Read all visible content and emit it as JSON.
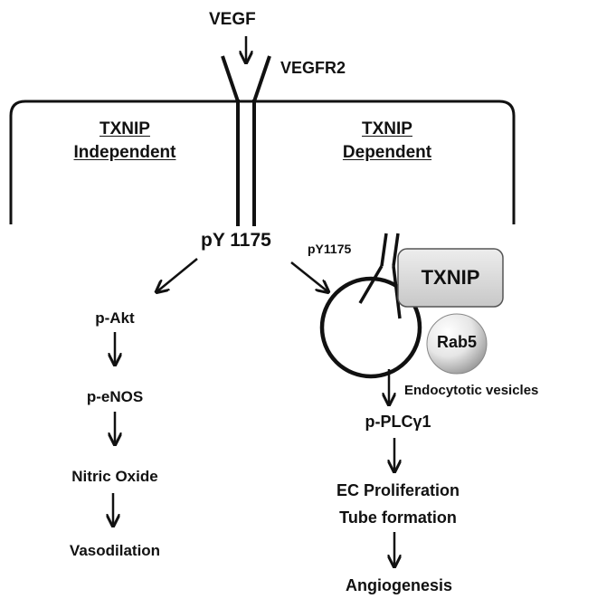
{
  "ligand": "VEGF",
  "receptor": "VEGFR2",
  "branches": {
    "independent": {
      "line1": "TXNIP",
      "line2": "Independent"
    },
    "dependent": {
      "line1": "TXNIP",
      "line2": "Dependent"
    }
  },
  "phospho_site": "pY 1175",
  "vesicle_site": "pY1175",
  "txnip_box": "TXNIP",
  "rab5": "Rab5",
  "vesicle_label": "Endocytotic vesicles",
  "left_pathway": [
    "p-Akt",
    "p-eNOS",
    "Nitric Oxide",
    "Vasodilation"
  ],
  "right_pathway": {
    "step1": "p-PLCγ1",
    "step2_line1": "EC Proliferation",
    "step2_line2": "Tube formation",
    "step3": "Angiogenesis"
  },
  "colors": {
    "ink": "#111111",
    "txnip_box": "#d9d9d9",
    "rab5_sphere": "#e2e2e2"
  }
}
